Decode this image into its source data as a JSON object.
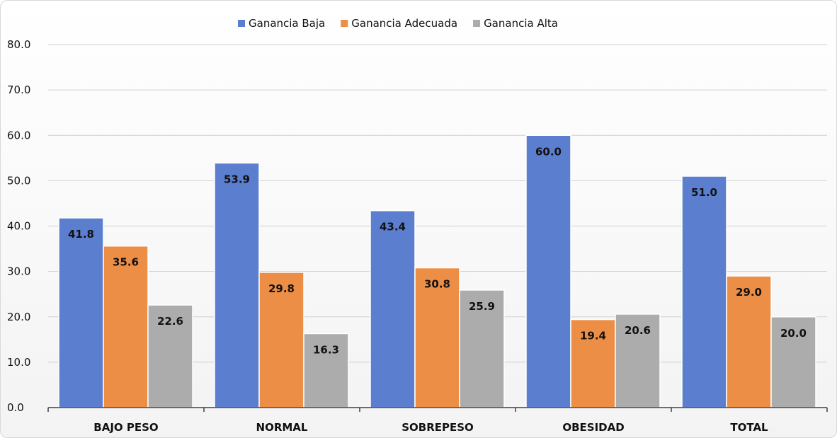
{
  "chart_data": {
    "type": "bar",
    "title": "",
    "xlabel": "",
    "ylabel": "",
    "categories": [
      "BAJO PESO",
      "NORMAL",
      "SOBREPESO",
      "OBESIDAD",
      "TOTAL"
    ],
    "series": [
      {
        "name": "Ganancia Baja",
        "color": "#5b7fce",
        "values": [
          41.8,
          53.9,
          43.4,
          60.0,
          51.0
        ]
      },
      {
        "name": "Ganancia Adecuada",
        "color": "#ed8e47",
        "values": [
          35.6,
          29.8,
          30.8,
          19.4,
          29.0
        ]
      },
      {
        "name": "Ganancia Alta",
        "color": "#acacac",
        "values": [
          22.6,
          16.3,
          25.9,
          20.6,
          20.0
        ]
      }
    ],
    "ylim": [
      0,
      80
    ],
    "yticks": [
      "0.0",
      "10.0",
      "20.0",
      "30.0",
      "40.0",
      "50.0",
      "60.0",
      "70.0",
      "80.0"
    ],
    "grid": true,
    "legend_position": "top-center",
    "data_labels": true,
    "value_format": "0.0"
  }
}
